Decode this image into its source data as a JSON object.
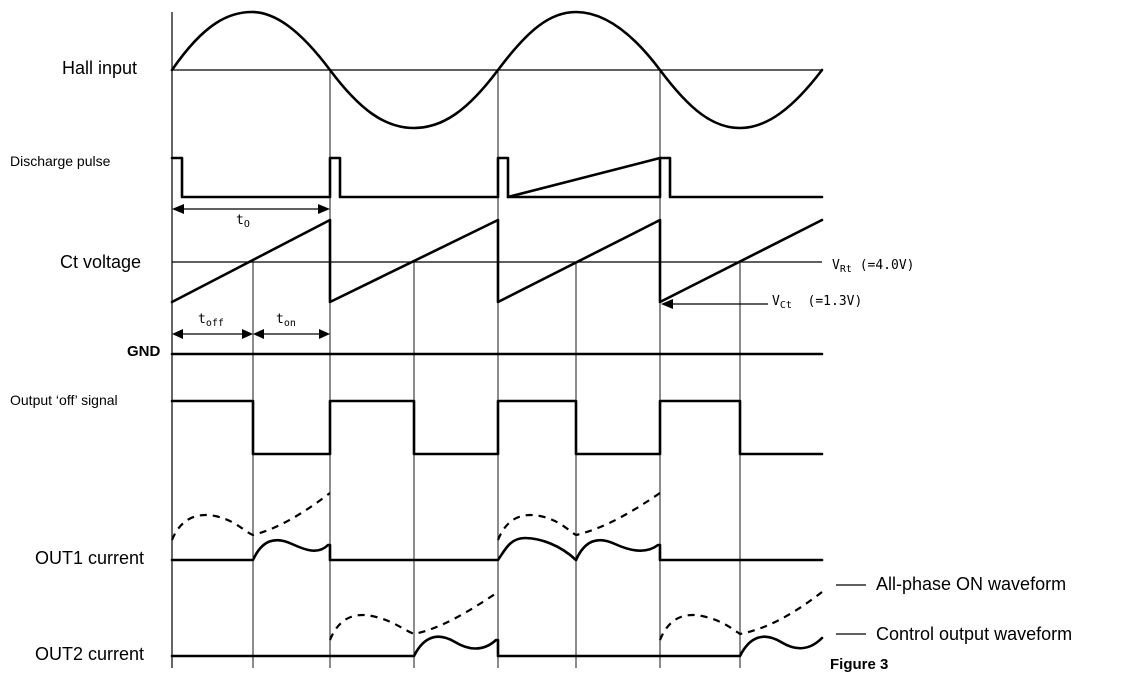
{
  "signals": {
    "hall_input": "Hall input",
    "discharge_pulse": "Discharge pulse",
    "ct_voltage": "Ct voltage",
    "gnd": "GND",
    "output_off_signal": "Output ‘off’ signal",
    "out1_current": "OUT1 current",
    "out2_current": "OUT2 current"
  },
  "annotations": {
    "t0": "t",
    "t0_sub": "O",
    "toff": "t",
    "toff_sub": "off",
    "ton": "t",
    "ton_sub": "on",
    "vrt": "V",
    "vrt_sub": "Rt",
    "vrt_value": "(=4.0V)",
    "vct": "V",
    "vct_sub": "Ct",
    "vct_value": "(=1.3V)"
  },
  "legend": {
    "all_phase_on": "All-phase ON waveform",
    "control_output": "Control output waveform"
  },
  "caption": "Figure 3",
  "colors": {
    "line": "#000000",
    "background": "#ffffff"
  }
}
